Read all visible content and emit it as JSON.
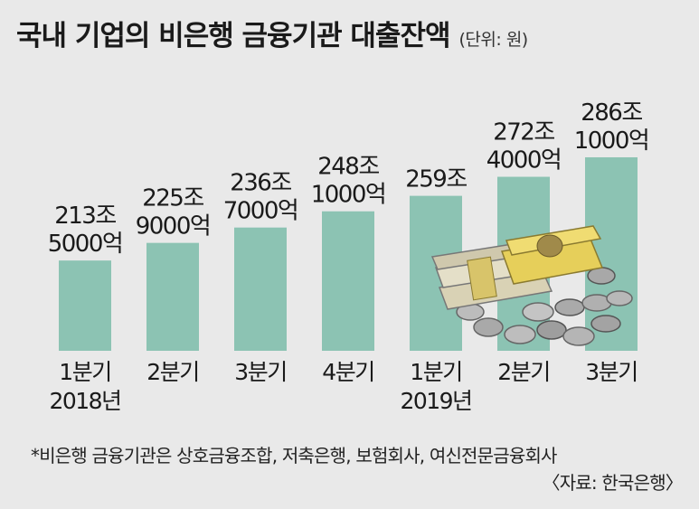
{
  "header": {
    "title": "국내 기업의 비은행 금융기관 대출잔액",
    "unit": "(단위: 원)"
  },
  "chart_data": {
    "type": "bar",
    "title": "국내 기업의 비은행 금융기관 대출잔액",
    "unit": "(단위: 원)",
    "categories": [
      "1분기 2018년",
      "2분기",
      "3분기",
      "4분기",
      "1분기 2019년",
      "2분기",
      "3분기"
    ],
    "x_tick_lines": [
      [
        "1분기",
        "2018년"
      ],
      [
        "2분기"
      ],
      [
        "3분기"
      ],
      [
        "4분기"
      ],
      [
        "1분기",
        "2019년"
      ],
      [
        "2분기"
      ],
      [
        "3분기"
      ]
    ],
    "values": [
      213.5,
      225.9,
      236.7,
      248.1,
      259.0,
      272.4,
      286.1
    ],
    "value_unit": "조원",
    "data_labels": [
      [
        "213조",
        "5000억"
      ],
      [
        "225조",
        "9000억"
      ],
      [
        "236조",
        "7000억"
      ],
      [
        "248조",
        "1000억"
      ],
      [
        "259조"
      ],
      [
        "272조",
        "4000억"
      ],
      [
        "286조",
        "1000억"
      ]
    ],
    "ylim": [
      150,
      295
    ],
    "grid": false,
    "bar_color": "#8cc3b3"
  },
  "footnote": "*비은행 금융기관은 상호금융조합, 저축은행, 보험회사, 여신전문금융회사",
  "source": "〈자료: 한국은행〉"
}
